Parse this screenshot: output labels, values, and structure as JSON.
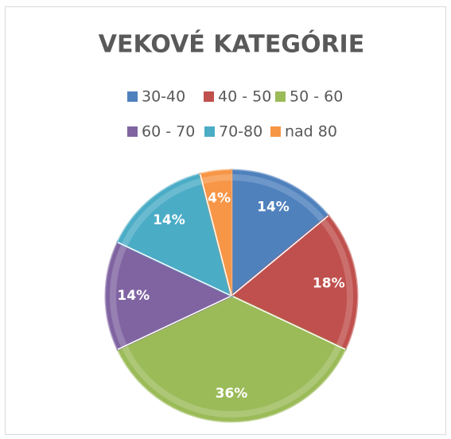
{
  "chart_data": {
    "type": "pie",
    "title": "VEKOVÉ KATEGÓRIE",
    "categories": [
      "30-40",
      "40 - 50",
      "50 - 60",
      "60 - 70",
      "70-80",
      "nad 80"
    ],
    "values": [
      14,
      18,
      36,
      14,
      14,
      4
    ],
    "value_labels": [
      "14%",
      "18%",
      "36%",
      "14%",
      "14%",
      "4%"
    ],
    "colors": [
      "#4f81bd",
      "#c0504d",
      "#9bbb59",
      "#8064a2",
      "#4bacc6",
      "#f79646"
    ],
    "legend": "top"
  }
}
